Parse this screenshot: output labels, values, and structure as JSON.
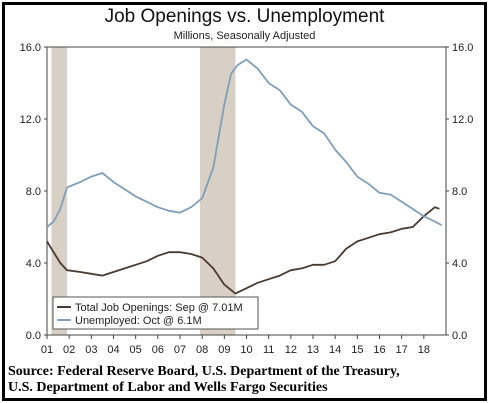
{
  "chart_data": {
    "type": "line",
    "title": "Job Openings vs. Unemployment",
    "subtitle": "Millions, Seasonally Adjusted",
    "ylim": [
      0,
      16
    ],
    "yticks": [
      "0.0",
      "4.0",
      "8.0",
      "12.0",
      "16.0"
    ],
    "ytick_values": [
      0,
      4,
      8,
      12,
      16
    ],
    "xlim": [
      2001.0,
      2019.0
    ],
    "xticks": [
      "01",
      "02",
      "03",
      "04",
      "05",
      "06",
      "07",
      "08",
      "09",
      "10",
      "11",
      "12",
      "13",
      "14",
      "15",
      "16",
      "17",
      "18"
    ],
    "xtick_values": [
      2001,
      2002,
      2003,
      2004,
      2005,
      2006,
      2007,
      2008,
      2009,
      2010,
      2011,
      2012,
      2013,
      2014,
      2015,
      2016,
      2017,
      2018
    ],
    "recessions": [
      [
        2001.2,
        2001.9
      ],
      [
        2007.9,
        2009.5
      ]
    ],
    "legend_position": "bottom-left",
    "series": [
      {
        "name": "Total Job Openings: Sep @ 7.01M",
        "color": "#4a3b30",
        "x": [
          2001.0,
          2001.3,
          2001.6,
          2001.9,
          2002.5,
          2003.0,
          2003.5,
          2004.0,
          2004.5,
          2005.0,
          2005.5,
          2006.0,
          2006.5,
          2007.0,
          2007.5,
          2008.0,
          2008.5,
          2009.0,
          2009.5,
          2010.0,
          2010.5,
          2011.0,
          2011.5,
          2012.0,
          2012.5,
          2013.0,
          2013.5,
          2014.0,
          2014.5,
          2015.0,
          2015.5,
          2016.0,
          2016.5,
          2017.0,
          2017.5,
          2018.0,
          2018.5,
          2018.7
        ],
        "values": [
          5.2,
          4.6,
          4.0,
          3.6,
          3.5,
          3.4,
          3.3,
          3.5,
          3.7,
          3.9,
          4.1,
          4.4,
          4.6,
          4.6,
          4.5,
          4.3,
          3.7,
          2.8,
          2.3,
          2.6,
          2.9,
          3.1,
          3.3,
          3.6,
          3.7,
          3.9,
          3.9,
          4.1,
          4.8,
          5.2,
          5.4,
          5.6,
          5.7,
          5.9,
          6.0,
          6.6,
          7.1,
          7.01
        ]
      },
      {
        "name": "Unemployed: Oct @ 6.1M",
        "color": "#7f9fb9",
        "x": [
          2001.0,
          2001.3,
          2001.6,
          2001.9,
          2002.5,
          2003.0,
          2003.5,
          2004.0,
          2004.5,
          2005.0,
          2005.5,
          2006.0,
          2006.5,
          2007.0,
          2007.5,
          2008.0,
          2008.5,
          2009.0,
          2009.3,
          2009.6,
          2010.0,
          2010.5,
          2011.0,
          2011.5,
          2012.0,
          2012.5,
          2013.0,
          2013.5,
          2014.0,
          2014.5,
          2015.0,
          2015.5,
          2016.0,
          2016.5,
          2017.0,
          2017.5,
          2018.0,
          2018.5,
          2018.8
        ],
        "values": [
          6.0,
          6.3,
          7.0,
          8.2,
          8.5,
          8.8,
          9.0,
          8.5,
          8.1,
          7.7,
          7.4,
          7.1,
          6.9,
          6.8,
          7.1,
          7.6,
          9.3,
          12.8,
          14.5,
          15.0,
          15.3,
          14.8,
          14.0,
          13.6,
          12.8,
          12.4,
          11.6,
          11.2,
          10.3,
          9.6,
          8.8,
          8.4,
          7.9,
          7.8,
          7.4,
          7.0,
          6.6,
          6.3,
          6.1
        ]
      }
    ]
  }
}
